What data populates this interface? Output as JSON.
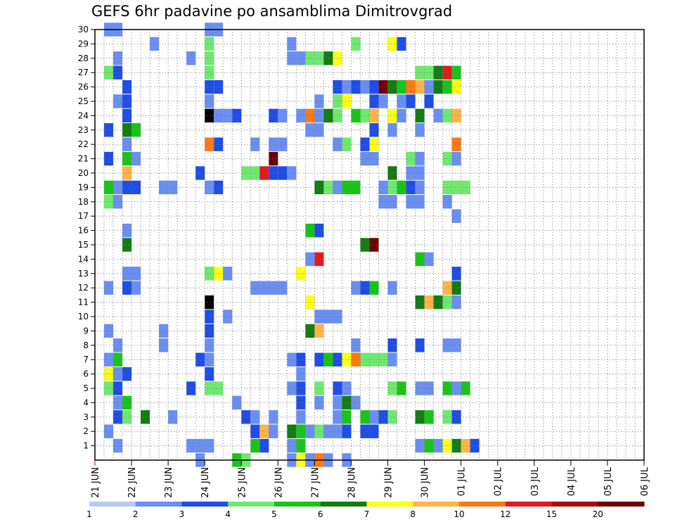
{
  "chart_data": {
    "type": "heatmap",
    "title": "GEFS 6hr padavine po ansamblima Dimitrovgrad",
    "xlabel": "",
    "ylabel": "",
    "x_tick_labels": [
      "21 JUN",
      "22 JUN",
      "23 JUN",
      "24 JUN",
      "25 JUN",
      "26 JUN",
      "27 JUN",
      "28 JUN",
      "29 JUN",
      "30 JUN",
      "01 JUL",
      "02 JUL",
      "03 JUL",
      "04 JUL",
      "05 JUL",
      "06 JUL"
    ],
    "y_tick_labels": [
      "1",
      "2",
      "3",
      "4",
      "5",
      "6",
      "7",
      "8",
      "9",
      "10",
      "11",
      "12",
      "13",
      "14",
      "15",
      "16",
      "17",
      "18",
      "19",
      "20",
      "21",
      "22",
      "23",
      "24",
      "25",
      "26",
      "27",
      "28",
      "29",
      "30"
    ],
    "ylim": [
      0,
      30
    ],
    "x_steps_per_day": 4,
    "grid": true,
    "legend_position": "bottom",
    "legend": {
      "labels": [
        "1",
        "2",
        "3",
        "4",
        "5",
        "6",
        "7",
        "8",
        "10",
        "12",
        "15",
        "20"
      ],
      "colors": [
        "#b8c8f8",
        "#6a8ef2",
        "#1f4de6",
        "#6ee86e",
        "#19c419",
        "#137d13",
        "#ffff14",
        "#ffb446",
        "#ff7812",
        "#e31a1c",
        "#aa0a0a",
        "#6e0000"
      ]
    },
    "cells": [
      [
        30,
        1,
        1
      ],
      [
        30,
        2,
        1
      ],
      [
        30,
        12,
        1
      ],
      [
        30,
        13,
        1
      ],
      [
        29,
        6,
        1
      ],
      [
        29,
        12,
        3
      ],
      [
        29,
        21,
        1
      ],
      [
        29,
        28,
        3
      ],
      [
        29,
        32,
        6
      ],
      [
        29,
        33,
        2
      ],
      [
        28,
        2,
        1
      ],
      [
        28,
        10,
        1
      ],
      [
        28,
        12,
        3
      ],
      [
        28,
        21,
        1
      ],
      [
        28,
        22,
        1
      ],
      [
        28,
        23,
        3
      ],
      [
        28,
        24,
        3
      ],
      [
        28,
        25,
        5
      ],
      [
        28,
        26,
        6
      ],
      [
        27,
        1,
        3
      ],
      [
        27,
        2,
        2
      ],
      [
        27,
        12,
        3
      ],
      [
        27,
        35,
        3
      ],
      [
        27,
        36,
        3
      ],
      [
        27,
        37,
        5
      ],
      [
        27,
        38,
        9
      ],
      [
        27,
        39,
        4
      ],
      [
        26,
        3,
        2
      ],
      [
        26,
        12,
        2
      ],
      [
        26,
        13,
        2
      ],
      [
        26,
        26,
        2
      ],
      [
        26,
        27,
        1
      ],
      [
        26,
        28,
        2
      ],
      [
        26,
        29,
        1
      ],
      [
        26,
        30,
        2
      ],
      [
        26,
        31,
        11
      ],
      [
        26,
        32,
        5
      ],
      [
        26,
        33,
        4
      ],
      [
        26,
        34,
        8
      ],
      [
        26,
        35,
        7
      ],
      [
        26,
        36,
        1
      ],
      [
        26,
        37,
        5
      ],
      [
        26,
        38,
        4
      ],
      [
        26,
        39,
        6
      ],
      [
        25,
        2,
        1
      ],
      [
        25,
        3,
        2
      ],
      [
        25,
        12,
        1
      ],
      [
        25,
        24,
        1
      ],
      [
        25,
        26,
        3
      ],
      [
        25,
        27,
        6
      ],
      [
        25,
        30,
        2
      ],
      [
        25,
        31,
        1
      ],
      [
        25,
        33,
        1
      ],
      [
        25,
        34,
        2
      ],
      [
        25,
        36,
        2
      ],
      [
        24,
        3,
        2
      ],
      [
        24,
        12,
        12
      ],
      [
        24,
        13,
        1
      ],
      [
        24,
        14,
        1
      ],
      [
        24,
        15,
        2
      ],
      [
        24,
        19,
        2
      ],
      [
        24,
        20,
        1
      ],
      [
        24,
        22,
        1
      ],
      [
        24,
        23,
        8
      ],
      [
        24,
        24,
        1
      ],
      [
        24,
        25,
        5
      ],
      [
        24,
        26,
        3
      ],
      [
        24,
        28,
        4
      ],
      [
        24,
        29,
        3
      ],
      [
        24,
        30,
        7
      ],
      [
        24,
        32,
        6
      ],
      [
        24,
        33,
        1
      ],
      [
        24,
        35,
        5
      ],
      [
        24,
        37,
        1
      ],
      [
        24,
        38,
        3
      ],
      [
        24,
        39,
        7
      ],
      [
        23,
        1,
        2
      ],
      [
        23,
        3,
        5
      ],
      [
        23,
        4,
        4
      ],
      [
        23,
        23,
        1
      ],
      [
        23,
        24,
        1
      ],
      [
        23,
        30,
        2
      ],
      [
        23,
        32,
        1
      ],
      [
        23,
        35,
        1
      ],
      [
        22,
        3,
        1
      ],
      [
        22,
        12,
        8
      ],
      [
        22,
        13,
        2
      ],
      [
        22,
        17,
        1
      ],
      [
        22,
        19,
        1
      ],
      [
        22,
        20,
        1
      ],
      [
        22,
        26,
        1
      ],
      [
        22,
        27,
        3
      ],
      [
        22,
        29,
        2
      ],
      [
        22,
        30,
        6
      ],
      [
        22,
        39,
        8
      ],
      [
        21,
        1,
        2
      ],
      [
        21,
        3,
        4
      ],
      [
        21,
        4,
        1
      ],
      [
        21,
        19,
        11
      ],
      [
        21,
        29,
        1
      ],
      [
        21,
        30,
        1
      ],
      [
        21,
        34,
        3
      ],
      [
        21,
        35,
        1
      ],
      [
        21,
        38,
        3
      ],
      [
        21,
        39,
        1
      ],
      [
        20,
        3,
        7
      ],
      [
        20,
        11,
        2
      ],
      [
        20,
        16,
        3
      ],
      [
        20,
        17,
        3
      ],
      [
        20,
        18,
        9
      ],
      [
        20,
        19,
        2
      ],
      [
        20,
        20,
        2
      ],
      [
        20,
        21,
        1
      ],
      [
        20,
        32,
        5
      ],
      [
        20,
        34,
        1
      ],
      [
        20,
        35,
        1
      ],
      [
        19,
        1,
        4
      ],
      [
        19,
        2,
        1
      ],
      [
        19,
        3,
        2
      ],
      [
        19,
        4,
        2
      ],
      [
        19,
        7,
        1
      ],
      [
        19,
        8,
        1
      ],
      [
        19,
        12,
        1
      ],
      [
        19,
        13,
        2
      ],
      [
        19,
        24,
        5
      ],
      [
        19,
        25,
        3
      ],
      [
        19,
        26,
        1
      ],
      [
        19,
        27,
        4
      ],
      [
        19,
        28,
        4
      ],
      [
        19,
        31,
        1
      ],
      [
        19,
        32,
        3
      ],
      [
        19,
        33,
        4
      ],
      [
        19,
        34,
        2
      ],
      [
        19,
        35,
        1
      ],
      [
        19,
        38,
        3
      ],
      [
        19,
        39,
        3
      ],
      [
        19,
        40,
        3
      ],
      [
        18,
        1,
        3
      ],
      [
        18,
        2,
        1
      ],
      [
        18,
        31,
        1
      ],
      [
        18,
        32,
        1
      ],
      [
        18,
        34,
        1
      ],
      [
        18,
        35,
        1
      ],
      [
        18,
        38,
        1
      ],
      [
        17,
        39,
        1
      ],
      [
        16,
        3,
        1
      ],
      [
        16,
        23,
        4
      ],
      [
        16,
        24,
        2
      ],
      [
        15,
        3,
        5
      ],
      [
        15,
        29,
        5
      ],
      [
        15,
        30,
        11
      ],
      [
        14,
        23,
        1
      ],
      [
        14,
        24,
        9
      ],
      [
        14,
        35,
        4
      ],
      [
        14,
        36,
        1
      ],
      [
        13,
        3,
        1
      ],
      [
        13,
        4,
        1
      ],
      [
        13,
        12,
        3
      ],
      [
        13,
        13,
        6
      ],
      [
        13,
        14,
        1
      ],
      [
        13,
        22,
        6
      ],
      [
        13,
        39,
        2
      ],
      [
        12,
        1,
        1
      ],
      [
        12,
        3,
        2
      ],
      [
        12,
        4,
        1
      ],
      [
        12,
        17,
        1
      ],
      [
        12,
        18,
        1
      ],
      [
        12,
        19,
        1
      ],
      [
        12,
        20,
        1
      ],
      [
        12,
        28,
        1
      ],
      [
        12,
        29,
        2
      ],
      [
        12,
        30,
        4
      ],
      [
        12,
        32,
        1
      ],
      [
        12,
        38,
        7
      ],
      [
        12,
        39,
        5
      ],
      [
        11,
        12,
        12
      ],
      [
        11,
        23,
        6
      ],
      [
        11,
        35,
        5
      ],
      [
        11,
        36,
        7
      ],
      [
        11,
        37,
        5
      ],
      [
        11,
        38,
        3
      ],
      [
        11,
        39,
        1
      ],
      [
        10,
        12,
        2
      ],
      [
        10,
        14,
        1
      ],
      [
        10,
        24,
        1
      ],
      [
        10,
        25,
        1
      ],
      [
        10,
        26,
        1
      ],
      [
        9,
        1,
        1
      ],
      [
        9,
        7,
        1
      ],
      [
        9,
        12,
        2
      ],
      [
        9,
        23,
        5
      ],
      [
        9,
        24,
        7
      ],
      [
        8,
        2,
        1
      ],
      [
        8,
        7,
        1
      ],
      [
        8,
        12,
        1
      ],
      [
        8,
        28,
        1
      ],
      [
        8,
        32,
        2
      ],
      [
        8,
        35,
        2
      ],
      [
        8,
        38,
        1
      ],
      [
        8,
        39,
        1
      ],
      [
        7,
        1,
        1
      ],
      [
        7,
        2,
        4
      ],
      [
        7,
        11,
        2
      ],
      [
        7,
        12,
        1
      ],
      [
        7,
        21,
        1
      ],
      [
        7,
        22,
        2
      ],
      [
        7,
        24,
        2
      ],
      [
        7,
        25,
        4
      ],
      [
        7,
        26,
        2
      ],
      [
        7,
        27,
        6
      ],
      [
        7,
        28,
        8
      ],
      [
        7,
        29,
        3
      ],
      [
        7,
        30,
        3
      ],
      [
        7,
        31,
        3
      ],
      [
        7,
        32,
        1
      ],
      [
        6,
        1,
        6
      ],
      [
        6,
        2,
        1
      ],
      [
        6,
        3,
        2
      ],
      [
        6,
        12,
        2
      ],
      [
        6,
        22,
        1
      ],
      [
        5,
        1,
        3
      ],
      [
        5,
        2,
        2
      ],
      [
        5,
        10,
        2
      ],
      [
        5,
        12,
        3
      ],
      [
        5,
        13,
        3
      ],
      [
        5,
        21,
        1
      ],
      [
        5,
        22,
        2
      ],
      [
        5,
        24,
        3
      ],
      [
        5,
        26,
        2
      ],
      [
        5,
        27,
        1
      ],
      [
        5,
        32,
        3
      ],
      [
        5,
        33,
        4
      ],
      [
        5,
        35,
        1
      ],
      [
        5,
        36,
        1
      ],
      [
        5,
        38,
        4
      ],
      [
        5,
        39,
        1
      ],
      [
        5,
        40,
        4
      ],
      [
        4,
        2,
        1
      ],
      [
        4,
        3,
        4
      ],
      [
        4,
        15,
        1
      ],
      [
        4,
        22,
        2
      ],
      [
        4,
        24,
        1
      ],
      [
        4,
        26,
        1
      ],
      [
        4,
        27,
        5
      ],
      [
        4,
        28,
        1
      ],
      [
        3,
        2,
        2
      ],
      [
        3,
        3,
        3
      ],
      [
        3,
        5,
        5
      ],
      [
        3,
        8,
        1
      ],
      [
        3,
        16,
        2
      ],
      [
        3,
        17,
        1
      ],
      [
        3,
        19,
        1
      ],
      [
        3,
        22,
        1
      ],
      [
        3,
        26,
        1
      ],
      [
        3,
        27,
        4
      ],
      [
        3,
        29,
        4
      ],
      [
        3,
        30,
        1
      ],
      [
        3,
        31,
        2
      ],
      [
        3,
        32,
        3
      ],
      [
        3,
        35,
        5
      ],
      [
        3,
        36,
        4
      ],
      [
        3,
        38,
        3
      ],
      [
        3,
        39,
        2
      ],
      [
        2,
        1,
        1
      ],
      [
        2,
        17,
        2
      ],
      [
        2,
        18,
        7
      ],
      [
        2,
        19,
        1
      ],
      [
        2,
        21,
        5
      ],
      [
        2,
        22,
        4
      ],
      [
        2,
        23,
        1
      ],
      [
        2,
        24,
        3
      ],
      [
        2,
        25,
        1
      ],
      [
        2,
        26,
        1
      ],
      [
        2,
        27,
        2
      ],
      [
        2,
        29,
        2
      ],
      [
        2,
        30,
        2
      ],
      [
        1,
        2,
        1
      ],
      [
        1,
        10,
        1
      ],
      [
        1,
        11,
        1
      ],
      [
        1,
        12,
        1
      ],
      [
        1,
        17,
        4
      ],
      [
        1,
        18,
        2
      ],
      [
        1,
        21,
        1
      ],
      [
        1,
        22,
        4
      ],
      [
        1,
        35,
        1
      ],
      [
        1,
        36,
        4
      ],
      [
        1,
        37,
        1
      ],
      [
        1,
        38,
        6
      ],
      [
        1,
        39,
        5
      ],
      [
        1,
        40,
        7
      ],
      [
        1,
        41,
        2
      ],
      [
        0,
        11,
        1
      ],
      [
        0,
        15,
        4
      ],
      [
        0,
        16,
        3
      ],
      [
        0,
        21,
        1
      ],
      [
        0,
        22,
        6
      ],
      [
        0,
        23,
        1
      ],
      [
        0,
        24,
        8
      ],
      [
        0,
        25,
        1
      ],
      [
        0,
        27,
        1
      ]
    ]
  }
}
